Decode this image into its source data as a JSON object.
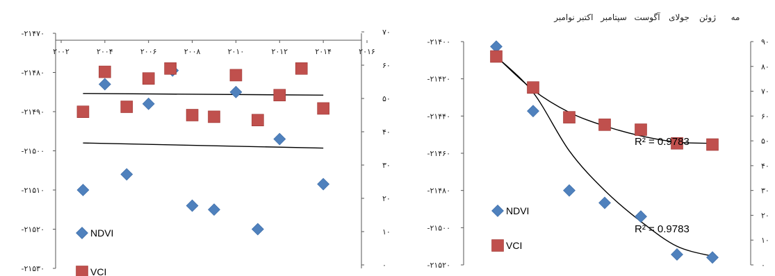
{
  "chart_data": [
    {
      "type": "scatter",
      "x_ticks": [
        "۲۰۰۲",
        "۲۰۰۴",
        "۲۰۰۶",
        "۲۰۰۸",
        "۲۰۱۰",
        "۲۰۱۲",
        "۲۰۱۴",
        "۲۰۱۶"
      ],
      "x_range": [
        2002,
        2016
      ],
      "y_left_ticks": [
        "-۲۱۴۷۰",
        "-۲۱۴۸۰",
        "-۲۱۴۹۰",
        "-۲۱۵۰۰",
        "-۲۱۵۱۰",
        "-۲۱۵۲۰",
        "-۲۱۵۳۰"
      ],
      "y_left_range": [
        -21530,
        -21470
      ],
      "y_right_ticks": [
        "۷۰",
        "۶۰",
        "۵۰",
        "۴۰",
        "۳۰",
        "۲۰",
        "۱۰",
        "۰"
      ],
      "y_right_range": [
        0,
        70
      ],
      "series": [
        {
          "name": "NDVI",
          "color": "#4f81bd",
          "marker": "diamond",
          "axis": "left",
          "points": [
            [
              2003,
              -21510
            ],
            [
              2004,
              -21483
            ],
            [
              2005,
              -21506
            ],
            [
              2006,
              -21488
            ],
            [
              2007.1,
              -21479.5
            ],
            [
              2008,
              -21514
            ],
            [
              2009,
              -21515
            ],
            [
              2010,
              -21485
            ],
            [
              2011,
              -21520
            ],
            [
              2012,
              -21497
            ],
            [
              2014,
              -21508.5
            ]
          ]
        },
        {
          "name": "VCI",
          "color": "#c0504d",
          "marker": "square",
          "axis": "right",
          "points": [
            [
              2003,
              46
            ],
            [
              2004,
              58
            ],
            [
              2005,
              47.5
            ],
            [
              2006,
              56
            ],
            [
              2007,
              59
            ],
            [
              2008,
              45
            ],
            [
              2009,
              44.5
            ],
            [
              2010,
              57
            ],
            [
              2011,
              43.5
            ],
            [
              2012,
              51
            ],
            [
              2013,
              59
            ],
            [
              2014,
              47
            ]
          ]
        }
      ],
      "trendlines": [
        {
          "axis": "right",
          "x": [
            2003,
            2014
          ],
          "y": [
            51.5,
            51
          ]
        },
        {
          "axis": "left",
          "x": [
            2003,
            2014
          ],
          "y": [
            -21498,
            -21499.3
          ]
        }
      ],
      "legend": [
        "NDVI",
        "VCI"
      ]
    },
    {
      "type": "scatter",
      "categories": [
        "مه",
        "ژوئن",
        "جولای",
        "آگوست",
        "سپتامبر",
        "اکتبر",
        "نوامبر"
      ],
      "y_left_ticks": [
        "-۲۱۴۰۰",
        "-۲۱۴۲۰",
        "-۲۱۴۴۰",
        "-۲۱۴۶۰",
        "-۲۱۴۸۰",
        "-۲۱۵۰۰",
        "-۲۱۵۲۰"
      ],
      "y_left_range": [
        -21520,
        -21400
      ],
      "y_right_ticks": [
        "۹۰",
        "۸۰",
        "۷۰",
        "۶۰",
        "۵۰",
        "۴۰",
        "۳۰",
        "۲۰",
        "۱۰",
        "۰"
      ],
      "y_right_range": [
        0,
        90
      ],
      "series": [
        {
          "name": "NDVI",
          "color": "#4f81bd",
          "marker": "diamond",
          "axis": "right",
          "values": [
            88,
            62,
            30,
            25,
            19.5,
            4.2,
            3
          ]
        },
        {
          "name": "VCI",
          "color": "#c0504d",
          "marker": "square",
          "axis": "right",
          "values": [
            84,
            71.5,
            59.5,
            56.5,
            54.5,
            49,
            48.5
          ]
        }
      ],
      "trend_r2": [
        "R² = 0.9783",
        "R² = 0.9783"
      ],
      "legend": [
        "NDVI",
        "VCI"
      ]
    }
  ]
}
